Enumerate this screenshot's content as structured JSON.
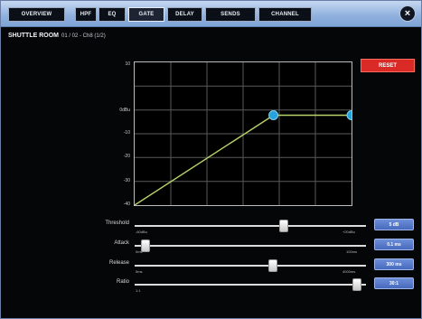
{
  "tabs": [
    {
      "label": "OVERVIEW"
    },
    {
      "label": "HPF"
    },
    {
      "label": "EQ"
    },
    {
      "label": "GATE"
    },
    {
      "label": "DELAY"
    },
    {
      "label": "SENDS"
    },
    {
      "label": "CHANNEL"
    }
  ],
  "active_tab": "GATE",
  "heading": {
    "title": "SHUTTLE ROOM",
    "subtitle": "01 / 02 - Ch8 (1/2)"
  },
  "y_axis_labels": [
    "10",
    "0dBu",
    "-10",
    "-20",
    "-30",
    "-40"
  ],
  "reset_label": "RESET",
  "sliders": [
    {
      "label": "Threshold",
      "min_label": "-60dBu",
      "max_label": "+20dBu",
      "value": 0.65,
      "button": "5 dB"
    },
    {
      "label": "Attack",
      "min_label": "0ms",
      "max_label": "100ms",
      "value": 0.03,
      "button": "0.1 ms"
    },
    {
      "label": "Release",
      "min_label": "5ms",
      "max_label": "4000ms",
      "value": 0.6,
      "button": "300 ms"
    },
    {
      "label": "Ratio",
      "min_label": "1:1",
      "max_label": "",
      "value": 0.98,
      "button": "30:1"
    }
  ],
  "chart_data": {
    "type": "line",
    "x": [
      0,
      0.64,
      1.0
    ],
    "y": [
      0,
      0.63,
      0.63
    ],
    "knee_points": [
      [
        0.64,
        0.63
      ],
      [
        1.0,
        0.63
      ]
    ],
    "grid": true,
    "line_color": "#b8d36a",
    "point_color": "#27a2dc"
  },
  "colors": {
    "accent": "#27a2dc",
    "reset": "#d92a25",
    "button": "#5578c9"
  }
}
